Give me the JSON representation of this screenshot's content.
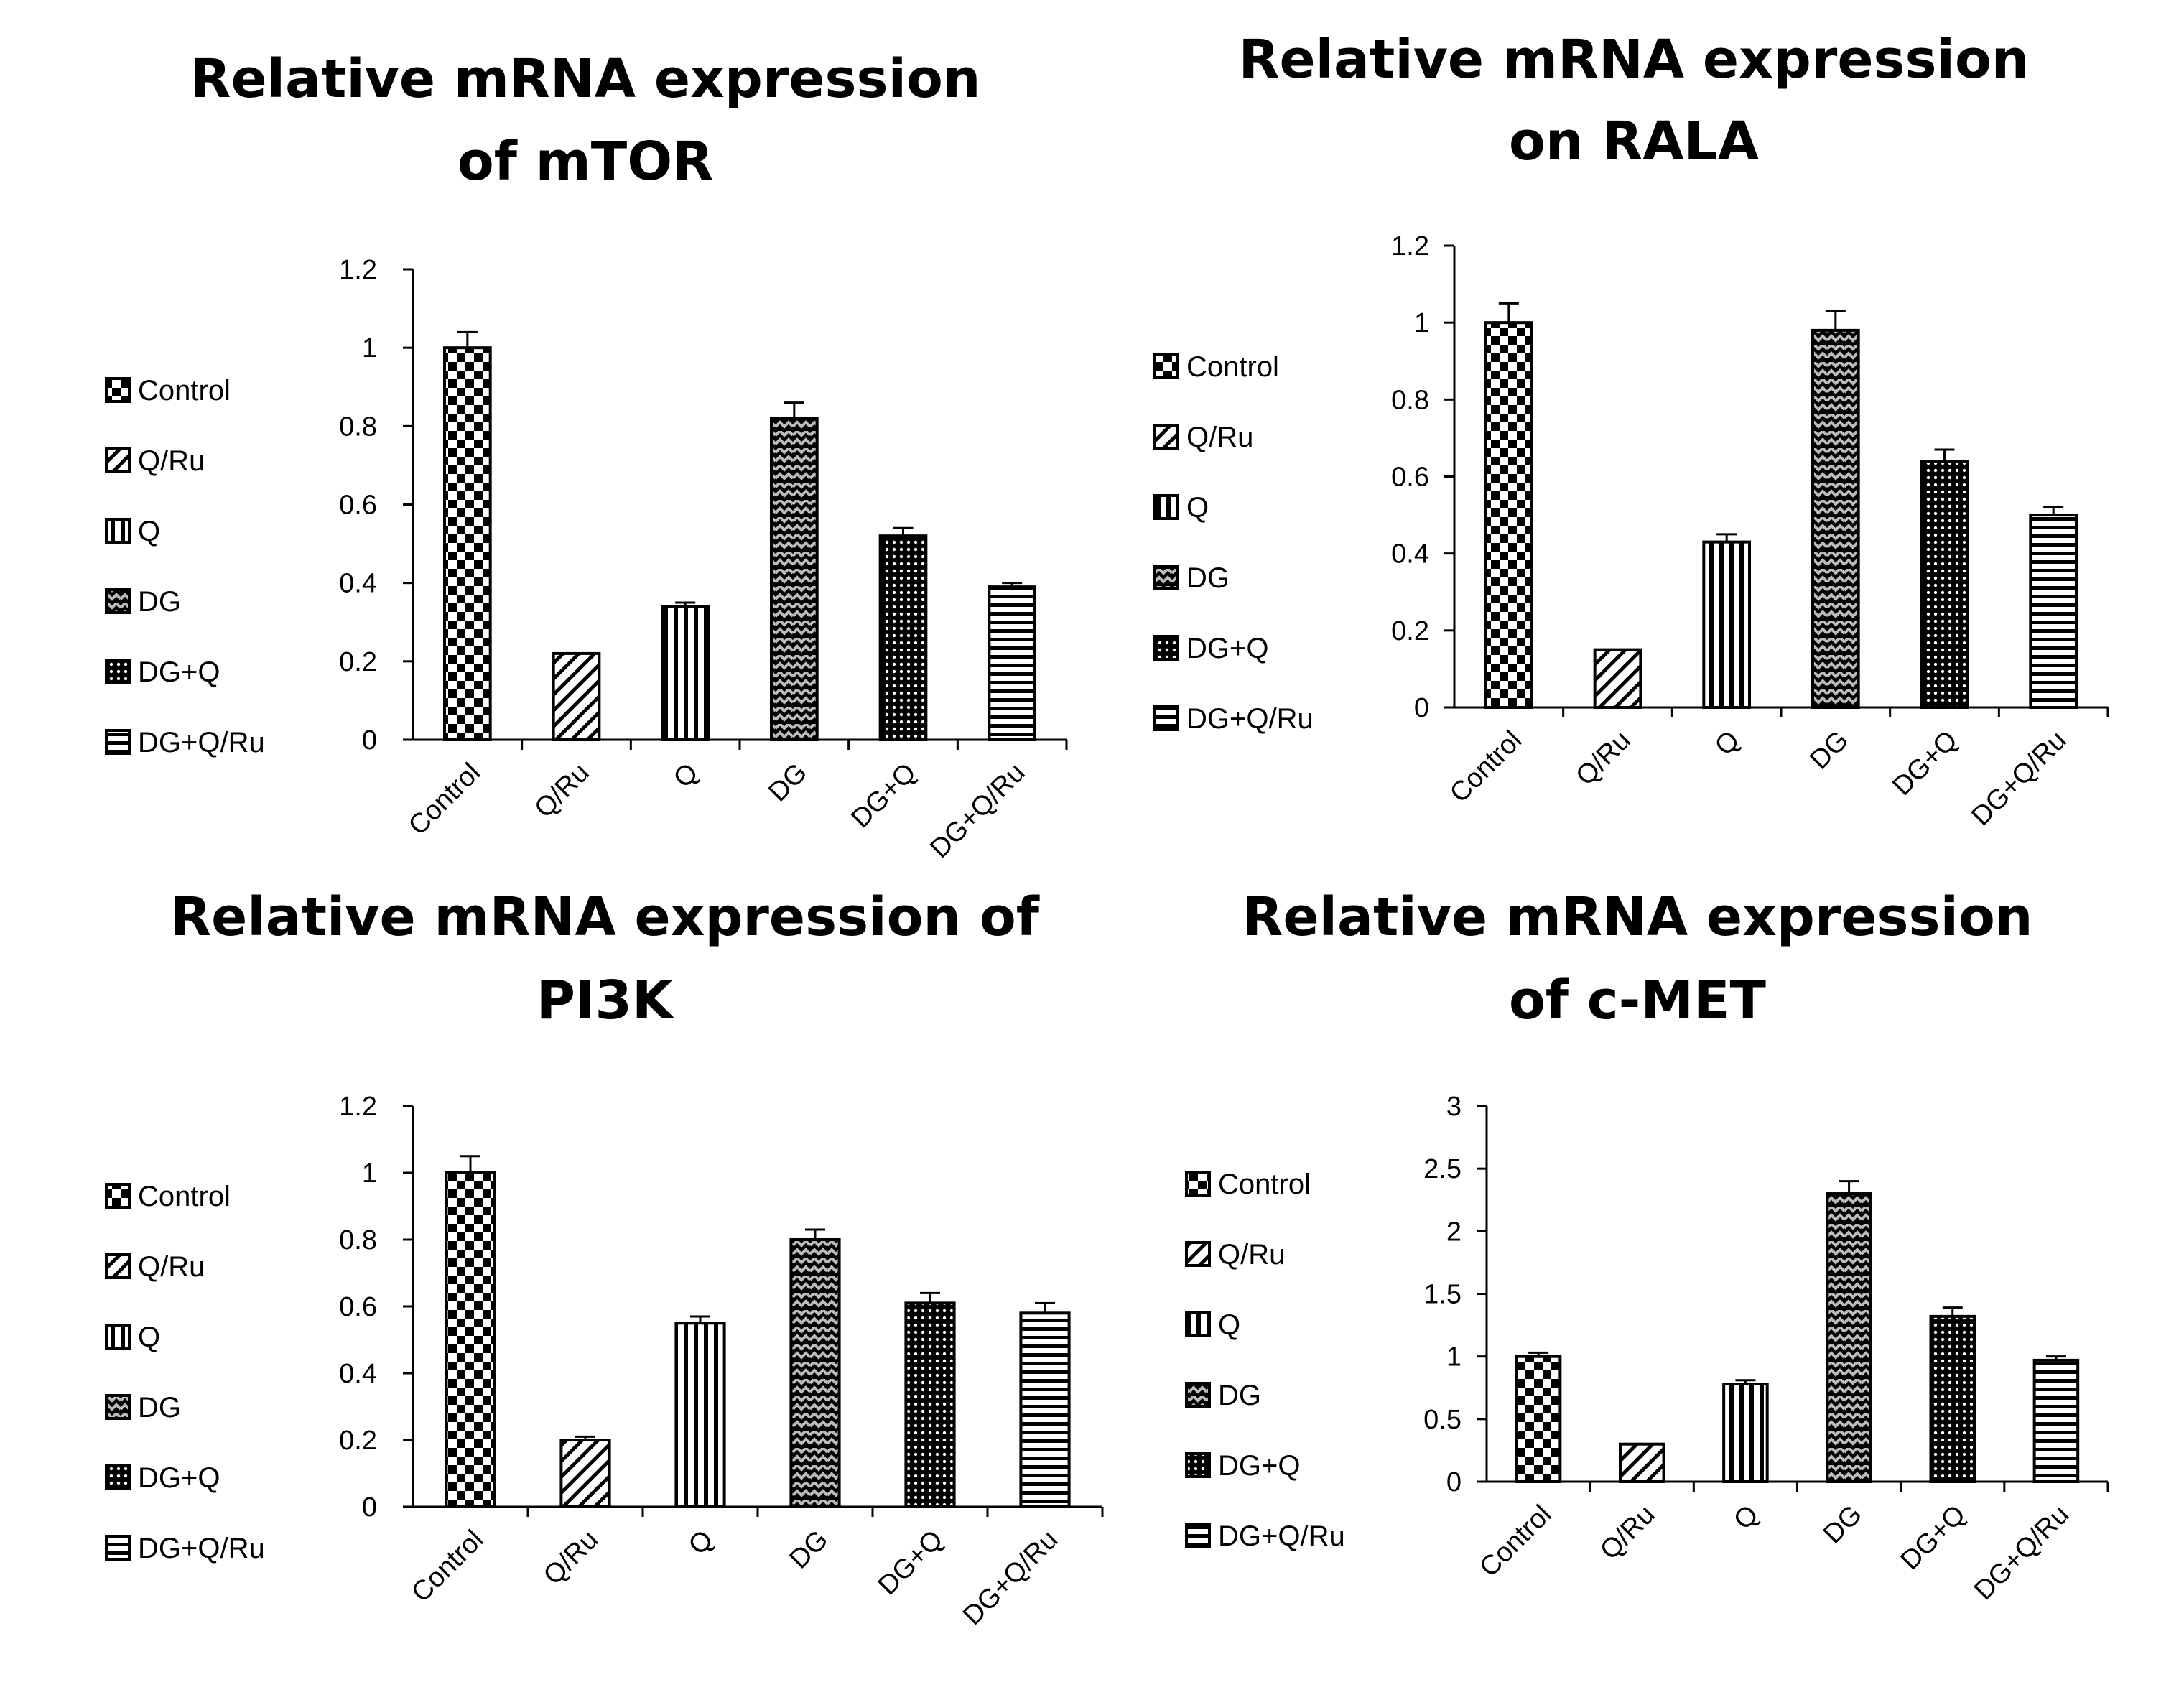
{
  "chart_data": [
    {
      "type": "bar",
      "title": [
        "Relative mRNA expression",
        "of mTOR"
      ],
      "categories": [
        "Control",
        "Q/Ru",
        "Q",
        "DG",
        "DG+Q",
        "DG+Q/Ru"
      ],
      "values": [
        1.0,
        0.22,
        0.34,
        0.82,
        0.52,
        0.39
      ],
      "errors": [
        0.04,
        0.0,
        0.01,
        0.04,
        0.02,
        0.01
      ],
      "yticks": [
        "0",
        "0.2",
        "0.4",
        "0.6",
        "0.8",
        "1",
        "1.2"
      ],
      "ylim": [
        0,
        1.2
      ],
      "legend": [
        "Control",
        "Q/Ru",
        "Q",
        "DG",
        "DG+Q",
        "DG+Q/Ru"
      ],
      "legend_placement": "left",
      "grid": false
    },
    {
      "type": "bar",
      "title": [
        "Relative mRNA expression",
        "on RALA"
      ],
      "categories": [
        "Control",
        "Q/Ru",
        "Q",
        "DG",
        "DG+Q",
        "DG+Q/Ru"
      ],
      "values": [
        1.0,
        0.15,
        0.43,
        0.98,
        0.64,
        0.5
      ],
      "errors": [
        0.05,
        0.0,
        0.02,
        0.05,
        0.03,
        0.02
      ],
      "yticks": [
        "0",
        "0.2",
        "0.4",
        "0.6",
        "0.8",
        "1",
        "1.2"
      ],
      "ylim": [
        0,
        1.2
      ],
      "legend": [
        "Control",
        "Q/Ru",
        "Q",
        "DG",
        "DG+Q",
        "DG+Q/Ru"
      ],
      "legend_placement": "left",
      "grid": false
    },
    {
      "type": "bar",
      "title": [
        "Relative mRNA expression of",
        "PI3K"
      ],
      "categories": [
        "Control",
        "Q/Ru",
        "Q",
        "DG",
        "DG+Q",
        "DG+Q/Ru"
      ],
      "values": [
        1.0,
        0.2,
        0.55,
        0.8,
        0.61,
        0.58
      ],
      "errors": [
        0.05,
        0.01,
        0.02,
        0.03,
        0.03,
        0.03
      ],
      "yticks": [
        "0",
        "0.2",
        "0.4",
        "0.6",
        "0.8",
        "1",
        "1.2"
      ],
      "ylim": [
        0,
        1.2
      ],
      "legend": [
        "Control",
        "Q/Ru",
        "Q",
        "DG",
        "DG+Q",
        "DG+Q/Ru"
      ],
      "legend_placement": "left",
      "grid": false
    },
    {
      "type": "bar",
      "title": [
        "Relative mRNA expression",
        "of c-MET"
      ],
      "categories": [
        "Control",
        "Q/Ru",
        "Q",
        "DG",
        "DG+Q",
        "DG+Q/Ru"
      ],
      "values": [
        1.0,
        0.3,
        0.78,
        2.3,
        1.32,
        0.97
      ],
      "errors": [
        0.03,
        0.0,
        0.03,
        0.1,
        0.07,
        0.03
      ],
      "yticks": [
        "0",
        "0.5",
        "1",
        "1.5",
        "2",
        "2.5",
        "3"
      ],
      "ylim": [
        0,
        3
      ],
      "legend": [
        "Control",
        "Q/Ru",
        "Q",
        "DG",
        "DG+Q",
        "DG+Q/Ru"
      ],
      "legend_placement": "left",
      "grid": false
    }
  ]
}
